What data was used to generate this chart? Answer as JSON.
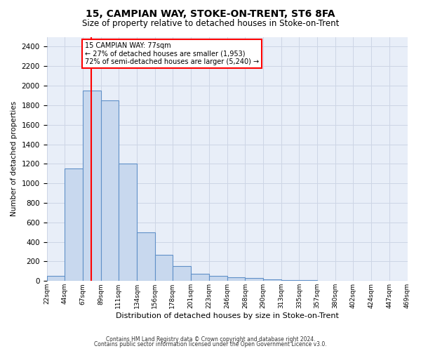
{
  "title": "15, CAMPIAN WAY, STOKE-ON-TRENT, ST6 8FA",
  "subtitle": "Size of property relative to detached houses in Stoke-on-Trent",
  "xlabel": "Distribution of detached houses by size in Stoke-on-Trent",
  "ylabel": "Number of detached properties",
  "footnote1": "Contains HM Land Registry data © Crown copyright and database right 2024.",
  "footnote2": "Contains public sector information licensed under the Open Government Licence v3.0.",
  "bar_color": "#c8d8ee",
  "bar_edge_color": "#6090c8",
  "red_line_x": 77,
  "annotation_line1": "15 CAMPIAN WAY: 77sqm",
  "annotation_line2": "← 27% of detached houses are smaller (1,953)",
  "annotation_line3": "72% of semi-detached houses are larger (5,240) →",
  "bins": [
    22,
    44,
    67,
    89,
    111,
    134,
    156,
    178,
    201,
    223,
    246,
    268,
    290,
    313,
    335,
    357,
    380,
    402,
    424,
    447,
    469
  ],
  "bar_values": [
    50,
    1150,
    1950,
    1850,
    1200,
    500,
    265,
    150,
    75,
    50,
    35,
    30,
    20,
    10,
    10,
    5,
    3,
    5,
    2,
    2
  ],
  "ylim": [
    0,
    2500
  ],
  "yticks": [
    0,
    200,
    400,
    600,
    800,
    1000,
    1200,
    1400,
    1600,
    1800,
    2000,
    2200,
    2400
  ],
  "grid_color": "#cdd5e5",
  "background_color": "#e8eef8",
  "title_fontsize": 10,
  "subtitle_fontsize": 8.5,
  "ylabel_fontsize": 7.5,
  "xlabel_fontsize": 8,
  "ytick_fontsize": 7.5,
  "xtick_fontsize": 6.5,
  "footnote_fontsize": 5.5
}
